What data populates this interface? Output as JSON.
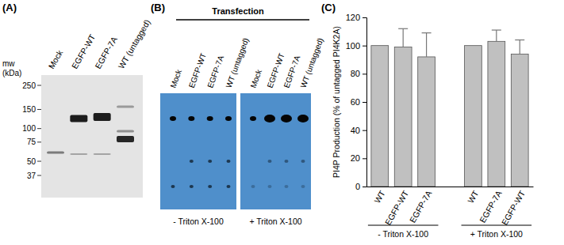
{
  "chart_data": {
    "type": "bar",
    "title": "(C)",
    "y_label": "PI4P Production (% of untagged PI4K2A)",
    "categories": [
      "WT",
      "EGFP-WT",
      "EGFP-7A",
      null,
      "WT",
      "EGFP-7A",
      "EGFP-WT"
    ],
    "values": [
      100,
      99,
      92,
      null,
      100,
      103,
      94
    ],
    "errors": [
      0,
      13,
      17,
      null,
      0,
      8,
      10
    ],
    "group_labels": [
      "- Triton X-100",
      "+ Triton X-100"
    ],
    "color": "#c0c0c0",
    "ylim": [
      0,
      120
    ],
    "yticks": [
      0,
      20,
      40,
      60,
      80,
      100,
      120
    ],
    "grid": false
  },
  "blot": {
    "label": "(A)",
    "lanes": [
      "Mock",
      "EGFP-WT",
      "EGFP-7A",
      "WT (untagged)"
    ],
    "mw_title": "mw (kDa)",
    "mw_markers": [
      250,
      150,
      100,
      75,
      50,
      37
    ]
  },
  "tlc": {
    "label": "(B)",
    "header": "Transfection",
    "lanes": [
      "Mock",
      "EGFP-WT",
      "EGFP-7A",
      "WT (untagged)"
    ],
    "conditions": [
      "- Triton X-100",
      "+ Triton X-100"
    ]
  }
}
